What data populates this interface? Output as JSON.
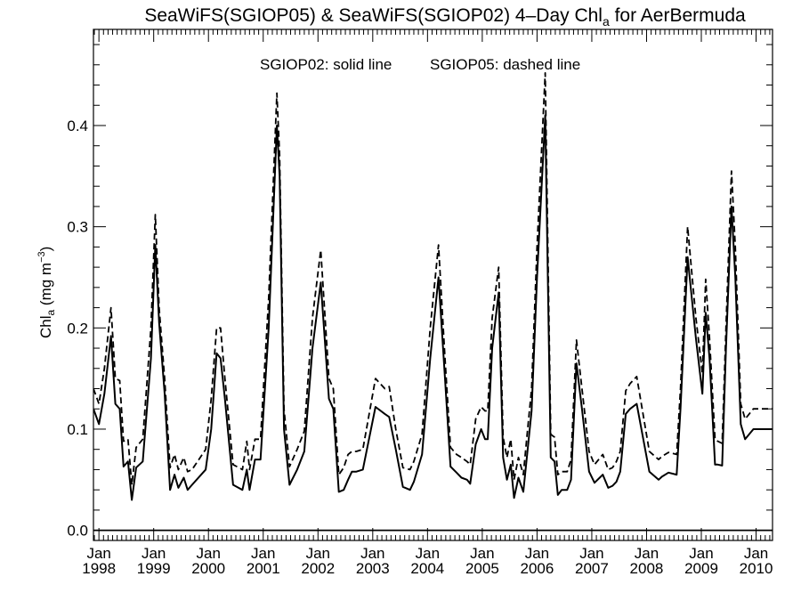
{
  "chart_data": {
    "type": "line",
    "title": "SeaWiFS(SGIOP05) & SeaWiFS(SGIOP02) 4–Day Chl",
    "title_subscript": "a",
    "title_suffix": " for AerBermuda",
    "annotation_solid": "SGIOP02: solid line",
    "annotation_dashed": "SGIOP05: dashed line",
    "ylabel": "Chl",
    "ylabel_subscript": "a",
    "ylabel_units": " (mg m",
    "ylabel_units_sup": "−3",
    "ylabel_units_close": ")",
    "xlim": [
      1997.9,
      2010.3
    ],
    "ylim": [
      -0.01,
      0.495
    ],
    "yticks": [
      "0.0",
      "0.1",
      "0.2",
      "0.3",
      "0.4"
    ],
    "ytick_values": [
      0.0,
      0.1,
      0.2,
      0.3,
      0.4
    ],
    "xtick_month_label": "Jan",
    "xtick_years": [
      "1998",
      "1999",
      "2000",
      "2001",
      "2002",
      "2003",
      "2004",
      "2005",
      "2006",
      "2007",
      "2008",
      "2009",
      "2010"
    ],
    "zero_line": 0.0,
    "series": [
      {
        "name": "SGIOP02",
        "style": "solid",
        "x": [
          1997.9,
          1998.0,
          1998.1,
          1998.22,
          1998.3,
          1998.38,
          1998.45,
          1998.53,
          1998.6,
          1998.68,
          1998.8,
          1998.95,
          1999.03,
          1999.1,
          1999.2,
          1999.3,
          1999.38,
          1999.45,
          1999.55,
          1999.62,
          1999.7,
          1999.95,
          2000.05,
          2000.15,
          2000.22,
          2000.3,
          2000.45,
          2000.62,
          2000.7,
          2000.75,
          2000.85,
          2000.95,
          2001.1,
          2001.25,
          2001.3,
          2001.38,
          2001.48,
          2001.62,
          2001.75,
          2001.9,
          2002.05,
          2002.2,
          2002.28,
          2002.38,
          2002.47,
          2002.55,
          2002.62,
          2002.7,
          2002.82,
          2003.05,
          2003.22,
          2003.3,
          2003.42,
          2003.55,
          2003.68,
          2003.75,
          2003.9,
          2004.05,
          2004.2,
          2004.32,
          2004.42,
          2004.53,
          2004.62,
          2004.72,
          2004.78,
          2004.88,
          2004.98,
          2005.05,
          2005.1,
          2005.18,
          2005.3,
          2005.38,
          2005.45,
          2005.52,
          2005.58,
          2005.66,
          2005.75,
          2005.82,
          2005.9,
          2006.0,
          2006.15,
          2006.25,
          2006.32,
          2006.38,
          2006.45,
          2006.55,
          2006.62,
          2006.72,
          2006.82,
          2006.95,
          2007.05,
          2007.2,
          2007.3,
          2007.38,
          2007.45,
          2007.52,
          2007.62,
          2007.7,
          2007.82,
          2008.05,
          2008.22,
          2008.28,
          2008.4,
          2008.55,
          2008.62,
          2008.75,
          2008.9,
          2009.02,
          2009.08,
          2009.15,
          2009.2,
          2009.25,
          2009.3,
          2009.38,
          2009.45,
          2009.55,
          2009.62,
          2009.72,
          2009.8,
          2009.95,
          2010.02,
          2010.12,
          2010.18,
          2010.3
        ],
        "values": [
          0.12,
          0.105,
          0.135,
          0.192,
          0.125,
          0.12,
          0.063,
          0.068,
          0.03,
          0.062,
          0.068,
          0.17,
          0.282,
          0.205,
          0.135,
          0.04,
          0.055,
          0.042,
          0.052,
          0.04,
          0.045,
          0.06,
          0.1,
          0.175,
          0.17,
          0.13,
          0.045,
          0.04,
          0.06,
          0.04,
          0.07,
          0.07,
          0.2,
          0.4,
          0.35,
          0.1,
          0.045,
          0.06,
          0.078,
          0.18,
          0.245,
          0.13,
          0.12,
          0.038,
          0.04,
          0.05,
          0.058,
          0.058,
          0.06,
          0.122,
          0.115,
          0.112,
          0.08,
          0.043,
          0.04,
          0.048,
          0.075,
          0.17,
          0.25,
          0.15,
          0.063,
          0.057,
          0.052,
          0.05,
          0.046,
          0.085,
          0.1,
          0.09,
          0.09,
          0.18,
          0.235,
          0.072,
          0.05,
          0.065,
          0.032,
          0.052,
          0.038,
          0.075,
          0.118,
          0.25,
          0.41,
          0.072,
          0.068,
          0.035,
          0.04,
          0.04,
          0.05,
          0.165,
          0.12,
          0.058,
          0.047,
          0.055,
          0.042,
          0.044,
          0.048,
          0.058,
          0.115,
          0.12,
          0.125,
          0.058,
          0.05,
          0.053,
          0.057,
          0.055,
          0.12,
          0.27,
          0.19,
          0.135,
          0.215,
          0.17,
          0.118,
          0.065,
          0.065,
          0.064,
          0.18,
          0.32,
          0.25,
          0.105,
          0.09,
          0.1,
          0.1,
          0.1,
          0.1,
          0.1
        ]
      },
      {
        "name": "SGIOP05",
        "style": "dashed",
        "x": [
          1997.9,
          1998.0,
          1998.1,
          1998.22,
          1998.3,
          1998.38,
          1998.45,
          1998.53,
          1998.6,
          1998.68,
          1998.8,
          1998.95,
          1999.03,
          1999.1,
          1999.2,
          1999.3,
          1999.38,
          1999.45,
          1999.55,
          1999.62,
          1999.7,
          1999.95,
          2000.05,
          2000.15,
          2000.22,
          2000.3,
          2000.45,
          2000.62,
          2000.7,
          2000.75,
          2000.85,
          2000.95,
          2001.1,
          2001.25,
          2001.3,
          2001.38,
          2001.48,
          2001.62,
          2001.75,
          2001.9,
          2002.05,
          2002.2,
          2002.28,
          2002.38,
          2002.47,
          2002.55,
          2002.62,
          2002.7,
          2002.82,
          2003.05,
          2003.22,
          2003.3,
          2003.42,
          2003.55,
          2003.68,
          2003.75,
          2003.9,
          2004.05,
          2004.2,
          2004.32,
          2004.42,
          2004.53,
          2004.62,
          2004.72,
          2004.78,
          2004.88,
          2004.98,
          2005.05,
          2005.1,
          2005.18,
          2005.3,
          2005.38,
          2005.45,
          2005.52,
          2005.58,
          2005.66,
          2005.75,
          2005.82,
          2005.9,
          2006.0,
          2006.15,
          2006.25,
          2006.32,
          2006.38,
          2006.45,
          2006.55,
          2006.62,
          2006.72,
          2006.82,
          2006.95,
          2007.05,
          2007.2,
          2007.3,
          2007.38,
          2007.45,
          2007.52,
          2007.62,
          2007.7,
          2007.82,
          2008.05,
          2008.22,
          2008.28,
          2008.4,
          2008.55,
          2008.62,
          2008.75,
          2008.9,
          2009.02,
          2009.08,
          2009.15,
          2009.2,
          2009.25,
          2009.3,
          2009.38,
          2009.45,
          2009.55,
          2009.62,
          2009.72,
          2009.8,
          2009.95,
          2010.02,
          2010.12,
          2010.18,
          2010.3
        ],
        "values": [
          0.14,
          0.125,
          0.16,
          0.22,
          0.15,
          0.148,
          0.088,
          0.09,
          0.045,
          0.082,
          0.09,
          0.2,
          0.312,
          0.22,
          0.15,
          0.062,
          0.075,
          0.06,
          0.072,
          0.058,
          0.06,
          0.08,
          0.13,
          0.2,
          0.2,
          0.15,
          0.065,
          0.06,
          0.088,
          0.06,
          0.09,
          0.09,
          0.23,
          0.432,
          0.37,
          0.12,
          0.063,
          0.08,
          0.098,
          0.21,
          0.277,
          0.15,
          0.14,
          0.055,
          0.062,
          0.075,
          0.078,
          0.078,
          0.08,
          0.15,
          0.14,
          0.142,
          0.1,
          0.062,
          0.06,
          0.068,
          0.095,
          0.2,
          0.282,
          0.17,
          0.082,
          0.075,
          0.072,
          0.068,
          0.065,
          0.11,
          0.122,
          0.118,
          0.118,
          0.21,
          0.26,
          0.092,
          0.072,
          0.09,
          0.05,
          0.072,
          0.055,
          0.095,
          0.14,
          0.28,
          0.452,
          0.095,
          0.092,
          0.055,
          0.058,
          0.058,
          0.07,
          0.188,
          0.14,
          0.078,
          0.065,
          0.075,
          0.06,
          0.062,
          0.068,
          0.078,
          0.138,
          0.145,
          0.152,
          0.078,
          0.07,
          0.073,
          0.077,
          0.075,
          0.14,
          0.3,
          0.21,
          0.155,
          0.248,
          0.19,
          0.14,
          0.09,
          0.088,
          0.086,
          0.2,
          0.355,
          0.28,
          0.125,
          0.11,
          0.12,
          0.12,
          0.12,
          0.12,
          0.12
        ]
      }
    ]
  }
}
